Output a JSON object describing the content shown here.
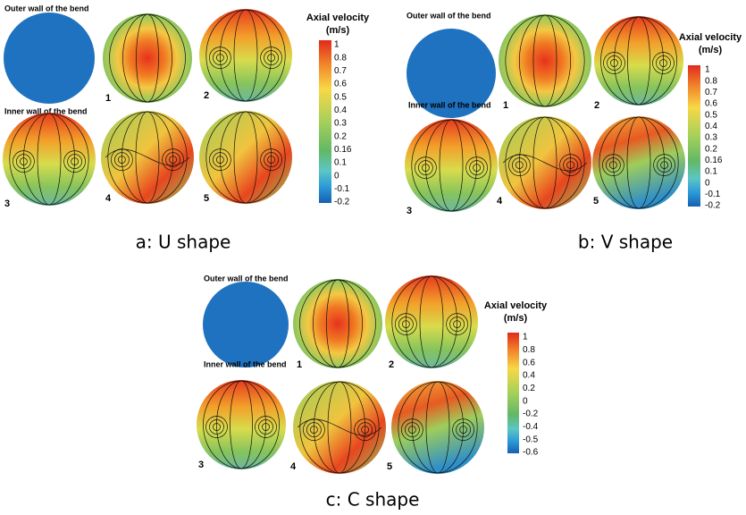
{
  "panels": [
    {
      "outer_wall_label": "Outer wall of the bend",
      "inner_wall_label": "Inner wall of the bend",
      "plot_labels": [
        "1",
        "2",
        "3",
        "4",
        "5"
      ],
      "colorbar": {
        "title": "Axial velocity",
        "unit": "(m/s)",
        "labels": [
          "1",
          "0.8",
          "0.7",
          "0.6",
          "0.5",
          "0.4",
          "0.3",
          "0.2",
          "0.16",
          "0.1",
          "0",
          "-0.1",
          "-0.2"
        ]
      },
      "caption": "a: U shape"
    },
    {
      "outer_wall_label": "Outer wall of the bend",
      "inner_wall_label": "Inner wall of the bend",
      "plot_labels": [
        "1",
        "2",
        "3",
        "4",
        "5"
      ],
      "colorbar": {
        "title": "Axial velocity",
        "unit": "(m/s)",
        "labels": [
          "1",
          "0.8",
          "0.7",
          "0.6",
          "0.5",
          "0.4",
          "0.3",
          "0.2",
          "0.16",
          "0.1",
          "0",
          "-0.1",
          "-0.2"
        ]
      },
      "caption": "b: V shape"
    },
    {
      "outer_wall_label": "Outer wall of the bend",
      "inner_wall_label": "Inner wall of the bend",
      "plot_labels": [
        "1",
        "2",
        "3",
        "4",
        "5"
      ],
      "colorbar": {
        "title": "Axial velocity",
        "unit": "(m/s)",
        "labels": [
          "1",
          "0.8",
          "0.6",
          "0.4",
          "0.2",
          "0",
          "-0.2",
          "-0.4",
          "-0.5",
          "-0.6"
        ]
      },
      "caption": "c: C shape"
    }
  ]
}
